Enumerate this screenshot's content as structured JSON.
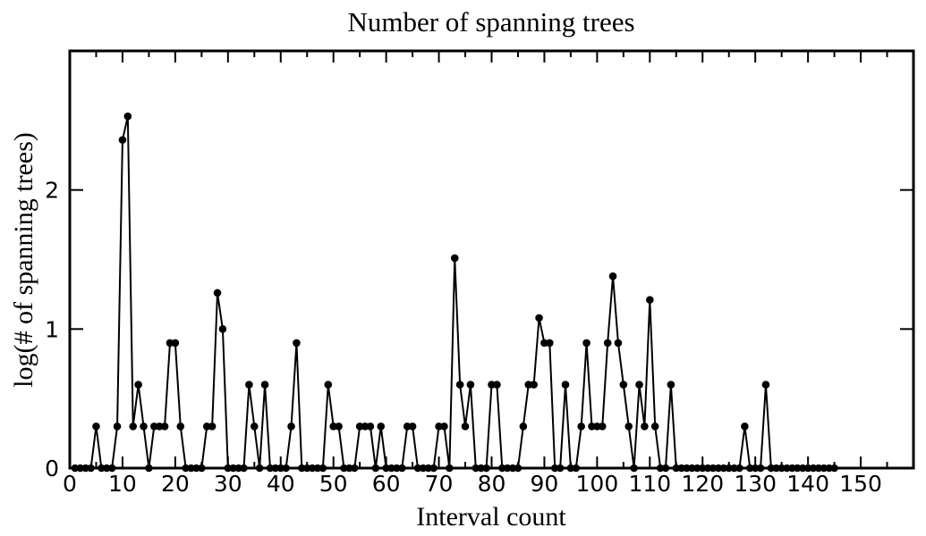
{
  "chart_data": {
    "type": "line",
    "title": "Number of spanning trees",
    "xlabel": "Interval count",
    "ylabel": "log(# of spanning trees)",
    "xlim": [
      0,
      160
    ],
    "ylim": [
      0,
      3
    ],
    "xticks": [
      0,
      10,
      20,
      30,
      40,
      50,
      60,
      70,
      80,
      90,
      100,
      110,
      120,
      130,
      140,
      150
    ],
    "xtick_labels": [
      "0",
      "10",
      "20",
      "30",
      "40",
      "50",
      "60",
      "70",
      "80",
      "90",
      "100",
      "110",
      "120",
      "130",
      "140",
      "150"
    ],
    "yticks": [
      0,
      1,
      2
    ],
    "ytick_labels": [
      "0",
      "1",
      "2"
    ],
    "grid": false,
    "legend": "none",
    "marker": "circle",
    "line_color": "#000000",
    "series": [
      {
        "x": [
          1,
          2,
          3,
          4,
          5,
          6,
          7,
          8,
          9,
          10,
          11,
          12,
          13,
          14,
          15,
          16,
          17,
          18,
          19,
          20,
          21,
          22,
          23,
          24,
          25,
          26,
          27,
          28,
          29,
          30,
          31,
          32,
          33,
          34,
          35,
          36,
          37,
          38,
          39,
          40,
          41,
          42,
          43,
          44,
          45,
          46,
          47,
          48,
          49,
          50,
          51,
          52,
          53,
          54,
          55,
          56,
          57,
          58,
          59,
          60,
          61,
          62,
          63,
          64,
          65,
          66,
          67,
          68,
          69,
          70,
          71,
          72,
          73,
          74,
          75,
          76,
          77,
          78,
          79,
          80,
          81,
          82,
          83,
          84,
          85,
          86,
          87,
          88,
          89,
          90,
          91,
          92,
          93,
          94,
          95,
          96,
          97,
          98,
          99,
          100,
          101,
          102,
          103,
          104,
          105,
          106,
          107,
          108,
          109,
          110,
          111,
          112,
          113,
          114,
          115,
          116,
          117,
          118,
          119,
          120,
          121,
          122,
          123,
          124,
          125,
          126,
          127,
          128,
          129,
          130,
          131,
          132,
          133,
          134,
          135,
          136,
          137,
          138,
          139,
          140,
          141,
          142,
          143,
          144,
          145
        ],
        "y": [
          0,
          0,
          0,
          0,
          0.3,
          0,
          0,
          0,
          0.3,
          2.36,
          2.53,
          0.3,
          0.6,
          0.3,
          0,
          0.3,
          0.3,
          0.3,
          0.9,
          0.9,
          0.3,
          0,
          0,
          0,
          0,
          0.3,
          0.3,
          1.26,
          1.0,
          0,
          0,
          0,
          0,
          0.6,
          0.3,
          0,
          0.6,
          0,
          0,
          0,
          0,
          0.3,
          0.9,
          0,
          0,
          0,
          0,
          0,
          0.6,
          0.3,
          0.3,
          0,
          0,
          0,
          0.3,
          0.3,
          0.3,
          0,
          0.3,
          0,
          0,
          0,
          0,
          0.3,
          0.3,
          0,
          0,
          0,
          0,
          0.3,
          0.3,
          0,
          1.51,
          0.6,
          0.3,
          0.6,
          0,
          0,
          0,
          0.6,
          0.6,
          0,
          0,
          0,
          0,
          0.3,
          0.6,
          0.6,
          1.08,
          0.9,
          0.9,
          0,
          0,
          0.6,
          0,
          0,
          0.3,
          0.9,
          0.3,
          0.3,
          0.3,
          0.9,
          1.38,
          0.9,
          0.6,
          0.3,
          0,
          0.6,
          0.3,
          1.21,
          0.3,
          0,
          0,
          0.6,
          0,
          0,
          0,
          0,
          0,
          0,
          0,
          0,
          0,
          0,
          0,
          0,
          0,
          0.3,
          0,
          0,
          0,
          0.6,
          0,
          0,
          0,
          0,
          0,
          0,
          0,
          0,
          0,
          0,
          0,
          0,
          0
        ]
      }
    ]
  }
}
